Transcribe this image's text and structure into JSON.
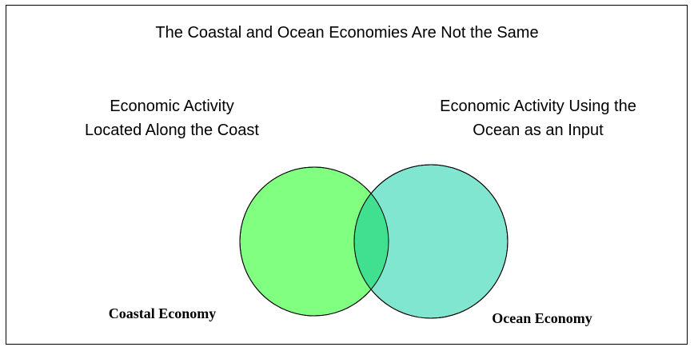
{
  "title": "The Coastal and Ocean Economies Are Not the Same",
  "sets": [
    {
      "description": [
        "Economic Activity",
        "Located Along the Coast"
      ],
      "label": "Coastal Economy"
    },
    {
      "description": [
        "Economic Activity Using the",
        "Ocean as an Input"
      ],
      "label": "Ocean Economy"
    }
  ]
}
